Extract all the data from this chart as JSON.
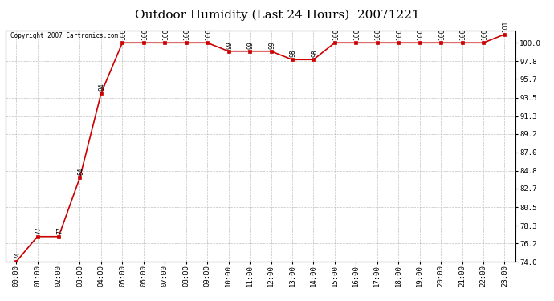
{
  "title": "Outdoor Humidity (Last 24 Hours)  20071221",
  "copyright": "Copyright 2007 Cartronics.com",
  "x_labels": [
    "00:00",
    "01:00",
    "02:00",
    "03:00",
    "04:00",
    "05:00",
    "06:00",
    "07:00",
    "08:00",
    "09:00",
    "10:00",
    "11:00",
    "12:00",
    "13:00",
    "14:00",
    "15:00",
    "16:00",
    "17:00",
    "18:00",
    "19:00",
    "20:00",
    "21:00",
    "22:00",
    "23:00"
  ],
  "y_values": [
    74,
    77,
    77,
    84,
    94,
    100,
    100,
    100,
    100,
    100,
    99,
    99,
    99,
    98,
    98,
    100,
    100,
    100,
    100,
    100,
    100,
    100,
    100,
    101
  ],
  "y_labels": [
    "74.0",
    "76.2",
    "78.3",
    "80.5",
    "82.7",
    "84.8",
    "87.0",
    "89.2",
    "91.3",
    "93.5",
    "95.7",
    "97.8",
    "100.0"
  ],
  "y_tick_vals": [
    74.0,
    76.2,
    78.3,
    80.5,
    82.7,
    84.8,
    87.0,
    89.2,
    91.3,
    93.5,
    95.7,
    97.8,
    100.0
  ],
  "ylim_min": 74.0,
  "ylim_max": 101.5,
  "line_color": "#cc0000",
  "marker": "s",
  "marker_size": 2.5,
  "bg_color": "#ffffff",
  "grid_color": "#bbbbbb",
  "title_fontsize": 11,
  "label_fontsize": 6.5,
  "annot_fontsize": 5.5
}
